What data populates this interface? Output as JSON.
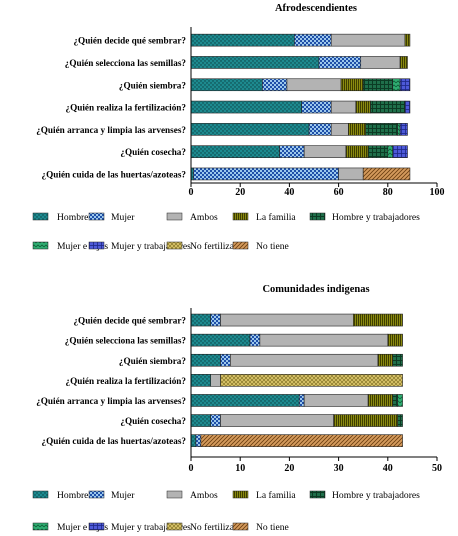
{
  "colors": {
    "Hombre": "#1d8a8f",
    "Mujer": "#9cc8ec",
    "Ambos": "#b3b3b3",
    "La familia": "#8a8a10",
    "Hombre y trabajadores": "#1f6f4a",
    "Mujer e hijos": "#2fae72",
    "Mujer y trabajadores": "#4d59d8",
    "No fertiliza": "#d9c46a",
    "No tiene": "#d49a5c"
  },
  "chart_data": [
    {
      "type": "bar",
      "orientation": "horizontal",
      "stacked": true,
      "title": "Afrodescendientes",
      "xlabel": "",
      "ylabel": "",
      "xlim": [
        0,
        100
      ],
      "xticks": [
        0,
        20,
        40,
        60,
        80,
        100
      ],
      "grid": false,
      "legend_position": "bottom",
      "categories": [
        "¿Quién decide qué sembrar?",
        "¿Quién selecciona las semillas?",
        "¿Quién siembra?",
        "¿Quién realiza la fertilización?",
        "¿Quién arranca y limpia las arvenses?",
        "¿Quién cosecha?",
        "¿Quién cuida de las huertas/azoteas?"
      ],
      "series": [
        {
          "name": "Hombre",
          "values": [
            42,
            52,
            29,
            45,
            48,
            36,
            1
          ]
        },
        {
          "name": "Mujer",
          "values": [
            15,
            17,
            10,
            12,
            9,
            10,
            59
          ]
        },
        {
          "name": "Ambos",
          "values": [
            30,
            16,
            22,
            10,
            7,
            17,
            10
          ]
        },
        {
          "name": "La familia",
          "values": [
            2,
            3,
            9,
            6,
            7,
            9,
            0
          ]
        },
        {
          "name": "Hombre y trabajadores",
          "values": [
            0,
            0,
            12,
            14,
            13,
            8,
            0
          ]
        },
        {
          "name": "Mujer e hijos",
          "values": [
            0,
            0,
            3,
            0,
            1,
            2,
            0
          ]
        },
        {
          "name": "Mujer y trabajadores",
          "values": [
            0,
            0,
            4,
            2,
            3,
            6,
            0
          ]
        },
        {
          "name": "No fertiliza",
          "values": [
            0,
            0,
            0,
            0,
            0,
            0,
            0
          ]
        },
        {
          "name": "No tiene",
          "values": [
            0,
            0,
            0,
            0,
            0,
            0,
            19
          ]
        }
      ]
    },
    {
      "type": "bar",
      "orientation": "horizontal",
      "stacked": true,
      "title": "Comunidades indigenas",
      "xlabel": "",
      "ylabel": "",
      "xlim": [
        0,
        50
      ],
      "xticks": [
        0,
        10,
        20,
        30,
        40,
        50
      ],
      "grid": false,
      "legend_position": "bottom",
      "categories": [
        "¿Quién decide qué sembrar?",
        "¿Quién selecciona las semillas?",
        "¿Quién siembra?",
        "¿Quién realiza la fertilización?",
        "¿Quién arranca y limpia las arvenses?",
        "¿Quién cosecha?",
        "¿Quién cuida de las huertas/azoteas?"
      ],
      "series": [
        {
          "name": "Hombre",
          "values": [
            4,
            12,
            6,
            4,
            22,
            4,
            1
          ]
        },
        {
          "name": "Mujer",
          "values": [
            2,
            2,
            2,
            0,
            1,
            2,
            1
          ]
        },
        {
          "name": "Ambos",
          "values": [
            27,
            26,
            30,
            2,
            13,
            23,
            0
          ]
        },
        {
          "name": "La familia",
          "values": [
            10,
            3,
            3,
            0,
            5,
            13,
            0
          ]
        },
        {
          "name": "Hombre y trabajadores",
          "values": [
            0,
            0,
            2,
            0,
            1,
            1,
            0
          ]
        },
        {
          "name": "Mujer e hijos",
          "values": [
            0,
            0,
            0,
            0,
            1,
            0,
            0
          ]
        },
        {
          "name": "Mujer y trabajadores",
          "values": [
            0,
            0,
            0,
            0,
            0,
            0,
            0
          ]
        },
        {
          "name": "No fertiliza",
          "values": [
            0,
            0,
            0,
            37,
            0,
            0,
            0
          ]
        },
        {
          "name": "No tiene",
          "values": [
            0,
            0,
            0,
            0,
            0,
            0,
            41
          ]
        }
      ]
    }
  ]
}
